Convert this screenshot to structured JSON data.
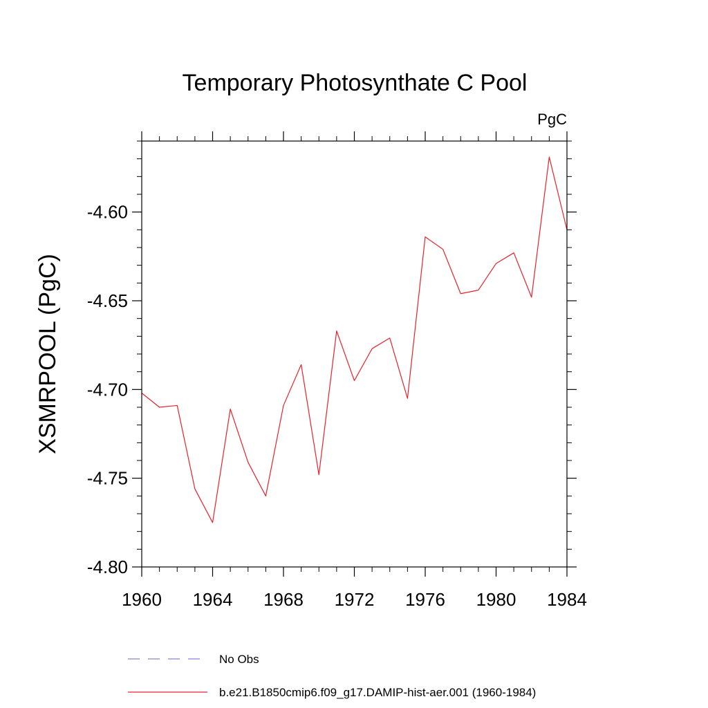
{
  "chart_data": {
    "type": "line",
    "title": "Temporary Photosynthate C Pool",
    "units_label": "PgC",
    "ylabel": "XSMRPOOL  (PgC)",
    "xlabel": "",
    "xlim": [
      1960,
      1984
    ],
    "ylim": [
      -4.8,
      -4.56
    ],
    "x_ticks": [
      1960,
      1964,
      1968,
      1972,
      1976,
      1980,
      1984
    ],
    "y_ticks": [
      -4.8,
      -4.75,
      -4.7,
      -4.65,
      -4.6
    ],
    "y_tick_labels": [
      "-4.80",
      "-4.75",
      "-4.70",
      "-4.65",
      "-4.60"
    ],
    "x_minor_step": 1,
    "y_minor_step": 0.01,
    "grid": false,
    "legend_position": "bottom",
    "legend": [
      {
        "label": "No Obs",
        "color": "#8a7fcf",
        "dash": "dashed"
      },
      {
        "label": "b.e21.B1850cmip6.f09_g17.DAMIP-hist-aer.001 (1960-1984)",
        "color": "#e8202a",
        "dash": "solid"
      }
    ],
    "series": [
      {
        "name": "b.e21.B1850cmip6.f09_g17.DAMIP-hist-aer.001 (1960-1984)",
        "color": "#e8202a",
        "x": [
          1960,
          1961,
          1962,
          1963,
          1964,
          1965,
          1966,
          1967,
          1968,
          1969,
          1970,
          1971,
          1972,
          1973,
          1974,
          1975,
          1976,
          1977,
          1978,
          1979,
          1980,
          1981,
          1982,
          1983,
          1984
        ],
        "y": [
          -4.702,
          -4.71,
          -4.709,
          -4.756,
          -4.775,
          -4.711,
          -4.741,
          -4.76,
          -4.709,
          -4.686,
          -4.748,
          -4.667,
          -4.695,
          -4.677,
          -4.671,
          -4.705,
          -4.614,
          -4.621,
          -4.646,
          -4.644,
          -4.629,
          -4.623,
          -4.648,
          -4.569,
          -4.61
        ]
      }
    ]
  }
}
